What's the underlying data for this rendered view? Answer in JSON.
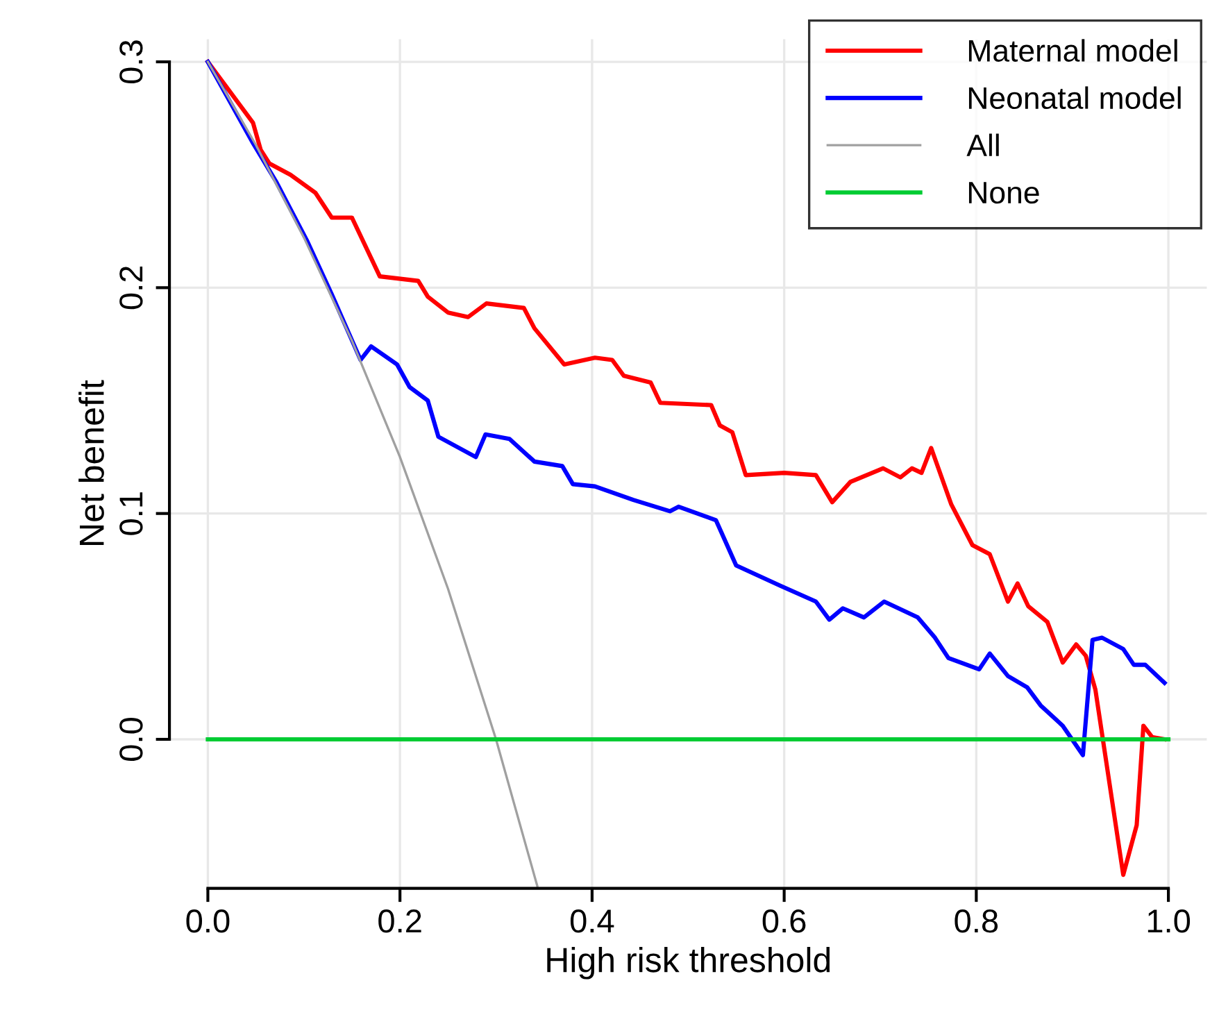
{
  "chart_data": {
    "type": "line",
    "xlabel": "High risk threshold",
    "ylabel": "Net benefit",
    "xlim": [
      -0.04,
      1.04
    ],
    "ylim": [
      -0.066,
      0.31
    ],
    "xticks": [
      {
        "value": 0,
        "label": "0.0"
      },
      {
        "value": 0.2,
        "label": "0.2"
      },
      {
        "value": 0.4,
        "label": "0.4"
      },
      {
        "value": 0.6,
        "label": "0.6"
      },
      {
        "value": 0.8,
        "label": "0.8"
      },
      {
        "value": 1,
        "label": "1.0"
      }
    ],
    "yticks": [
      {
        "value": 0,
        "label": "0.0"
      },
      {
        "value": 0.1,
        "label": "0.1"
      },
      {
        "value": 0.2,
        "label": "0.2"
      },
      {
        "value": 0.3,
        "label": "0.3"
      }
    ],
    "grid": true,
    "legend": "top right",
    "marker": "none",
    "line_style": "solid",
    "series": [
      {
        "name": "Maternal model",
        "color": "#ff0000",
        "x": [
          0,
          0.047,
          0.055,
          0.064,
          0.086,
          0.112,
          0.129,
          0.15,
          0.179,
          0.219,
          0.229,
          0.25,
          0.271,
          0.29,
          0.329,
          0.34,
          0.371,
          0.403,
          0.421,
          0.433,
          0.461,
          0.471,
          0.524,
          0.533,
          0.546,
          0.56,
          0.6,
          0.633,
          0.65,
          0.669,
          0.703,
          0.721,
          0.733,
          0.743,
          0.753,
          0.774,
          0.796,
          0.814,
          0.833,
          0.843,
          0.854,
          0.874,
          0.89,
          0.904,
          0.914,
          0.924,
          0.953,
          0.967,
          0.974,
          0.983,
          0.996
        ],
        "values": [
          0.3,
          0.273,
          0.261,
          0.255,
          0.25,
          0.242,
          0.231,
          0.231,
          0.205,
          0.203,
          0.196,
          0.189,
          0.187,
          0.193,
          0.191,
          0.182,
          0.166,
          0.169,
          0.168,
          0.161,
          0.158,
          0.149,
          0.148,
          0.139,
          0.136,
          0.117,
          0.118,
          0.117,
          0.105,
          0.114,
          0.12,
          0.116,
          0.12,
          0.118,
          0.129,
          0.104,
          0.086,
          0.082,
          0.061,
          0.069,
          0.059,
          0.052,
          0.034,
          0.042,
          0.037,
          0.022,
          -0.06,
          -0.038,
          0.006,
          0.001,
          0.0
        ]
      },
      {
        "name": "Neonatal model",
        "color": "#0000ff",
        "x": [
          0,
          0.047,
          0.071,
          0.103,
          0.129,
          0.159,
          0.17,
          0.197,
          0.21,
          0.229,
          0.24,
          0.279,
          0.289,
          0.314,
          0.34,
          0.369,
          0.38,
          0.403,
          0.443,
          0.481,
          0.49,
          0.529,
          0.55,
          0.596,
          0.633,
          0.647,
          0.661,
          0.683,
          0.704,
          0.739,
          0.757,
          0.771,
          0.803,
          0.814,
          0.833,
          0.853,
          0.867,
          0.89,
          0.911,
          0.921,
          0.931,
          0.953,
          0.964,
          0.976,
          0.996
        ],
        "values": [
          0.3,
          0.264,
          0.247,
          0.221,
          0.197,
          0.168,
          0.174,
          0.166,
          0.156,
          0.15,
          0.134,
          0.125,
          0.135,
          0.133,
          0.123,
          0.121,
          0.113,
          0.112,
          0.106,
          0.101,
          0.103,
          0.097,
          0.077,
          0.068,
          0.061,
          0.053,
          0.058,
          0.054,
          0.061,
          0.054,
          0.045,
          0.036,
          0.031,
          0.038,
          0.028,
          0.023,
          0.015,
          0.006,
          -0.007,
          0.044,
          0.045,
          0.04,
          0.033,
          0.033,
          0.025
        ]
      },
      {
        "name": "All",
        "color": "#a0a0a0",
        "x": [
          0,
          0.05,
          0.1,
          0.15,
          0.2,
          0.25,
          0.3,
          0.343
        ],
        "values": [
          0.3,
          0.2632,
          0.2222,
          0.1765,
          0.125,
          0.0667,
          0.0,
          -0.065
        ]
      },
      {
        "name": "None",
        "color": "#00cc33",
        "x": [
          0,
          1
        ],
        "values": [
          0,
          0
        ]
      }
    ]
  }
}
